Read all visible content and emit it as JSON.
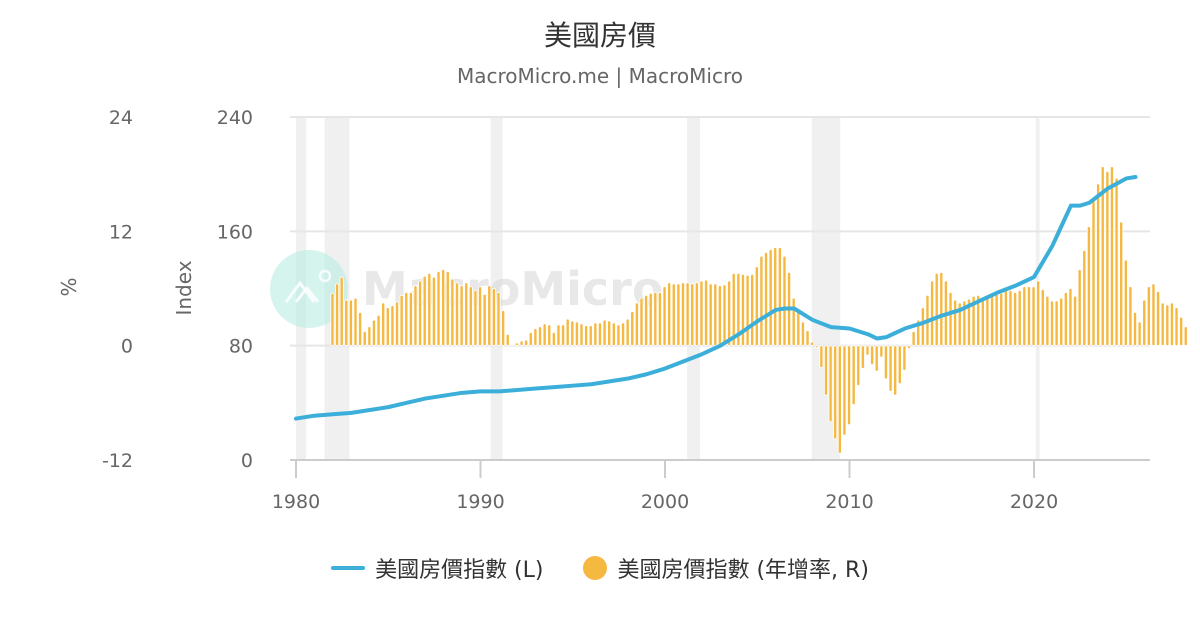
{
  "header": {
    "title": "美國房價",
    "subtitle": "MacroMicro.me | MacroMicro"
  },
  "watermark": "MacroMicro",
  "colors": {
    "index_line": "#3bafda",
    "yoy_bars": "#f5b942",
    "recession_band": "#f0f0f0",
    "grid": "#e6e6e6",
    "watermark_logo": "#b9ede2"
  },
  "legend": {
    "line_label": "美國房價指數 (L)",
    "bar_label": "美國房價指數 (年增率, R)"
  },
  "chart_data": {
    "type": "line+bar",
    "title": "美國房價",
    "subtitle": "MacroMicro.me | MacroMicro",
    "x_ticks": [
      "1980",
      "1990",
      "2000",
      "2010",
      "2020"
    ],
    "left_axis": {
      "label": "Index",
      "ticks": [
        "0",
        "80",
        "160",
        "240"
      ],
      "range": [
        0,
        240
      ]
    },
    "right_axis": {
      "label": "%",
      "ticks": [
        "-12",
        "0",
        "12",
        "24"
      ],
      "range": [
        -12,
        24
      ]
    },
    "grid": true,
    "legend_position": "bottom",
    "recessions": [
      [
        1980.0,
        1980.55
      ],
      [
        1981.55,
        1982.9
      ],
      [
        1990.55,
        1991.2
      ],
      [
        2001.2,
        2001.9
      ],
      [
        2007.95,
        2009.5
      ],
      [
        2020.1,
        2020.3
      ]
    ],
    "series": [
      {
        "name": "美國房價指數 (L)",
        "axis": "left",
        "type": "line",
        "x": [
          1980,
          1981,
          1982,
          1983,
          1984,
          1985,
          1986,
          1987,
          1988,
          1989,
          1990,
          1991,
          1992,
          1993,
          1994,
          1995,
          1996,
          1997,
          1998,
          1999,
          2000,
          2001,
          2002,
          2003,
          2004,
          2005,
          2006,
          2006.5,
          2007,
          2008,
          2009,
          2010,
          2011,
          2011.5,
          2012,
          2013,
          2014,
          2015,
          2016,
          2017,
          2018,
          2019,
          2020,
          2021,
          2022,
          2022.5,
          2023,
          2024,
          2025,
          2025.5
        ],
        "values": [
          29,
          31,
          32,
          33,
          35,
          37,
          40,
          43,
          45,
          47,
          48,
          48,
          49,
          50,
          51,
          52,
          53,
          55,
          57,
          60,
          64,
          69,
          74,
          80,
          88,
          97,
          105,
          106,
          106,
          98,
          93,
          92,
          88,
          85,
          86,
          92,
          96,
          101,
          105,
          111,
          117,
          122,
          128,
          150,
          178,
          178,
          180,
          190,
          197,
          198
        ]
      },
      {
        "name": "美國房價指數 (年增率, R)",
        "axis": "right",
        "type": "bar",
        "x_start": 1981.0,
        "x_step": 0.25,
        "values": [
          5.5,
          6.5,
          7.2,
          4.8,
          4.8,
          5.0,
          3.5,
          1.5,
          2.0,
          2.7,
          3.2,
          4.5,
          4.0,
          4.2,
          4.6,
          5.3,
          5.6,
          5.6,
          6.3,
          6.8,
          7.3,
          7.6,
          7.2,
          7.8,
          8.0,
          7.8,
          7.0,
          6.6,
          6.3,
          6.6,
          6.2,
          5.8,
          6.2,
          5.4,
          6.3,
          6.0,
          5.6,
          3.7,
          1.2,
          0.1,
          0.3,
          0.5,
          0.6,
          1.4,
          1.8,
          2.0,
          2.3,
          2.2,
          1.4,
          2.2,
          2.2,
          2.8,
          2.6,
          2.5,
          2.3,
          2.1,
          2.1,
          2.4,
          2.4,
          2.7,
          2.6,
          2.4,
          2.2,
          2.4,
          2.8,
          3.6,
          4.5,
          5.0,
          5.3,
          5.5,
          5.6,
          5.6,
          6.2,
          6.6,
          6.5,
          6.5,
          6.6,
          6.6,
          6.5,
          6.6,
          6.8,
          6.9,
          6.5,
          6.5,
          6.3,
          6.4,
          6.8,
          7.6,
          7.6,
          7.5,
          7.4,
          7.5,
          8.3,
          9.4,
          9.8,
          10.1,
          10.3,
          10.3,
          9.4,
          7.7,
          5.0,
          3.6,
          2.5,
          1.6,
          0.4,
          -0.2,
          -2.3,
          -5.2,
          -8.0,
          -9.8,
          -11.3,
          -9.4,
          -8.3,
          -6.2,
          -4.2,
          -2.4,
          -1.0,
          -2.0,
          -2.7,
          -1.2,
          -3.5,
          -4.8,
          -5.2,
          -4.0,
          -2.6,
          -0.3,
          1.5,
          2.7,
          4.0,
          5.3,
          6.8,
          7.6,
          7.7,
          6.8,
          5.6,
          4.8,
          4.5,
          4.7,
          4.9,
          5.2,
          5.3,
          5.1,
          5.3,
          5.2,
          5.4,
          5.5,
          5.8,
          5.8,
          5.6,
          5.8,
          6.2,
          6.2,
          6.2,
          6.8,
          5.9,
          5.2,
          4.7,
          4.7,
          5.0,
          5.6,
          6.0,
          5.2,
          8.0,
          10.0,
          12.5,
          15.4,
          17.0,
          18.8,
          18.3,
          18.8,
          17.6,
          13.0,
          9.0,
          6.2,
          3.5,
          2.5,
          4.8,
          6.2,
          6.5,
          5.7,
          4.5,
          4.3,
          4.5,
          4.0,
          3.0,
          2.0
        ]
      }
    ]
  }
}
